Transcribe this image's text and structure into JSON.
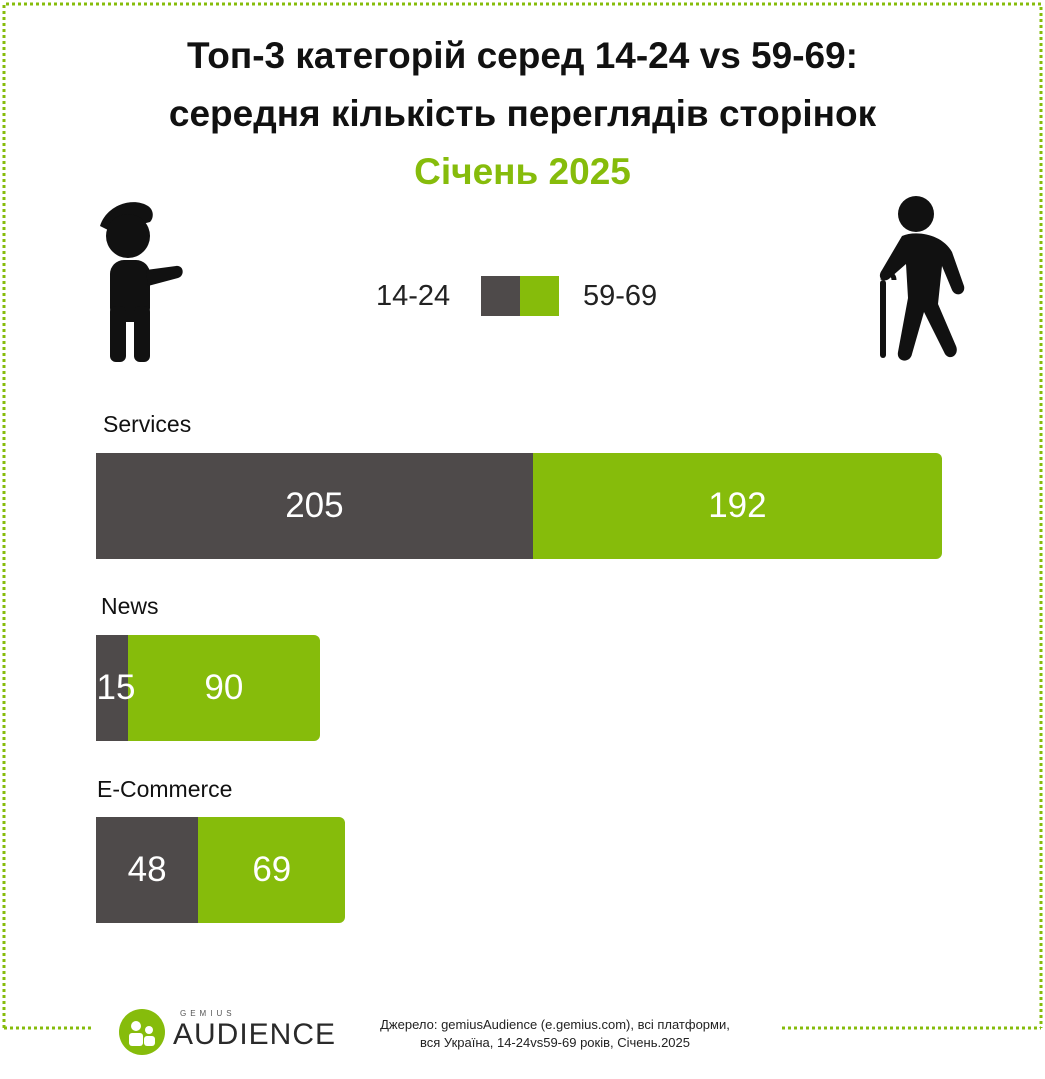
{
  "title_line1": "Топ-3 категорій серед 14-24 vs 59-69:",
  "title_line2": "середня кількість переглядів сторінок",
  "subtitle": "Січень 2025",
  "colors": {
    "group_a": "#4e4a4a",
    "group_b": "#86bc0b",
    "border": "#86bc0b"
  },
  "icons": {
    "left": "young-person-icon",
    "right": "elderly-person-with-cane-icon"
  },
  "chart_data": {
    "type": "bar",
    "orientation": "horizontal",
    "stacked": true,
    "categories": [
      "Services",
      "News",
      "E-Commerce"
    ],
    "series": [
      {
        "name": "14-24",
        "values": [
          205,
          15,
          48
        ]
      },
      {
        "name": "59-69",
        "values": [
          192,
          90,
          69
        ]
      }
    ],
    "legend_position": "top-center",
    "grid": false
  },
  "footer": {
    "source_line1": "Джерело: gemiusAudience (e.gemius.com), всі платформи,",
    "source_line2": "вся Україна, 14-24vs59-69 років, Січень.2025",
    "logo_small": "GEMIUS",
    "logo_main": "AUDIENCE"
  }
}
